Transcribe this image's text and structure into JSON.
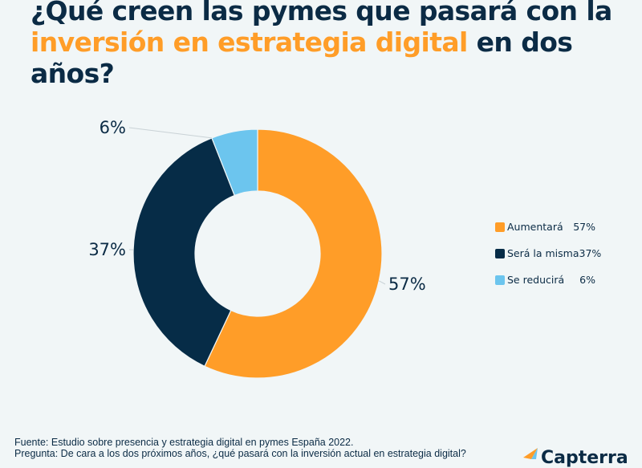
{
  "title": {
    "line1": "¿Qué creen las pymes que pasará con la",
    "highlight": "inversión en estrategia digital",
    "line2_rest": " en dos años?"
  },
  "colors": {
    "orange": "#ff9d28",
    "navy": "#062c47",
    "light_blue": "#6cc5ee",
    "background": "#f1f6f7",
    "text": "#0b2b45"
  },
  "chart_data": {
    "type": "pie",
    "variant": "donut",
    "title": "¿Qué creen las pymes que pasará con la inversión en estrategia digital en dos años?",
    "categories": [
      "Aumentará",
      "Será la misma",
      "Se reducirá"
    ],
    "values": [
      57,
      37,
      6
    ],
    "unit": "%",
    "data_labels": [
      "57%",
      "37%",
      "6%"
    ],
    "colors": [
      "#ff9d28",
      "#062c47",
      "#6cc5ee"
    ],
    "start_angle": "12 o'clock, clockwise",
    "legend_position": "right"
  },
  "legend": [
    {
      "label": "Aumentará",
      "value": "57%",
      "color": "#ff9d28"
    },
    {
      "label": "Será la misma",
      "value": "37%",
      "color": "#062c47"
    },
    {
      "label": "Se reducirá",
      "value": "6%",
      "color": "#6cc5ee"
    }
  ],
  "footer": {
    "source": "Fuente: Estudio sobre presencia y estrategia digital en pymes España 2022.",
    "question": "Pregunta: De cara a los dos próximos años, ¿qué pasará con la inversión actual en estrategia digital?"
  },
  "logo": {
    "text": "Capterra"
  }
}
